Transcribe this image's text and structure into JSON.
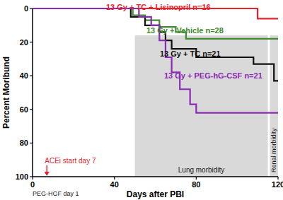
{
  "chart_data": {
    "type": "line",
    "xlabel": "Days after PBI",
    "ylabel": "Percent Moribund",
    "xlim": [
      0,
      120
    ],
    "xticks": [
      0,
      40,
      80,
      120
    ],
    "ylim": [
      0,
      100
    ],
    "yticks": [
      0,
      20,
      40,
      60,
      80,
      100
    ],
    "grid": false,
    "line_style": "step",
    "series": [
      {
        "name": "13 Gy + TC + Lisinopril n=16",
        "color": "#e8222a",
        "x": [
          0,
          110,
          120
        ],
        "values": [
          0,
          6,
          6
        ]
      },
      {
        "name": "13 Gy + Vehicle n=28",
        "color": "#3f8a2e",
        "x": [
          0,
          49,
          55,
          62,
          70,
          75,
          120
        ],
        "values": [
          0,
          4,
          7,
          11,
          14,
          18,
          18
        ]
      },
      {
        "name": "13 Gy + TC n=21",
        "color": "#111111",
        "x": [
          0,
          48,
          55,
          62,
          65,
          68,
          80,
          108,
          118,
          120
        ],
        "values": [
          0,
          5,
          10,
          14,
          19,
          24,
          29,
          33,
          43,
          43
        ]
      },
      {
        "name": "13 Gy + PEG-hG-CSF n=21",
        "color": "#8b2ab5",
        "x": [
          0,
          52,
          58,
          62,
          65,
          68,
          72,
          77,
          80,
          120
        ],
        "values": [
          0,
          5,
          10,
          19,
          29,
          38,
          48,
          57,
          62,
          62
        ]
      }
    ],
    "annotations": [
      {
        "text": "Lung morbidity",
        "x0": 50,
        "x1": 115
      },
      {
        "text": "Renal morbidity",
        "x0": 116,
        "x1": 120
      },
      {
        "text": "ACEi start day 7",
        "x": 7,
        "color": "#e8222a"
      },
      {
        "text": "PEG-HGF day 1",
        "x": 1
      }
    ]
  }
}
